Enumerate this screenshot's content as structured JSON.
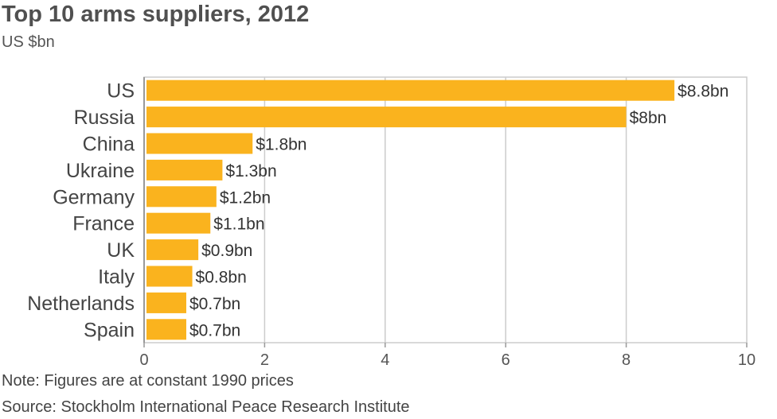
{
  "header": {
    "title": "Top 10 arms suppliers, 2012",
    "subtitle": "US $bn"
  },
  "footer": {
    "note": "Note: Figures are at constant 1990 prices",
    "source": "Source: Stockholm International Peace Research Institute"
  },
  "colors": {
    "bar": "#fab31e",
    "grid": "#cccccc",
    "axis": "#999999"
  },
  "chart_data": {
    "type": "bar",
    "orientation": "horizontal",
    "title": "Top 10 arms suppliers, 2012",
    "subtitle": "US $bn",
    "categories": [
      "US",
      "Russia",
      "China",
      "Ukraine",
      "Germany",
      "France",
      "UK",
      "Italy",
      "Netherlands",
      "Spain"
    ],
    "values": [
      8.8,
      8,
      1.8,
      1.3,
      1.2,
      1.1,
      0.9,
      0.8,
      0.7,
      0.7
    ],
    "data_labels": [
      "$8.8bn",
      "$8bn",
      "$1.8bn",
      "$1.3bn",
      "$1.2bn",
      "$1.1bn",
      "$0.9bn",
      "$0.8bn",
      "$0.7bn",
      "$0.7bn"
    ],
    "xlim": [
      0,
      10
    ],
    "xticks": [
      0,
      2,
      4,
      6,
      8,
      10
    ],
    "xtick_labels": [
      "0",
      "2",
      "4",
      "6",
      "8",
      "10"
    ],
    "grid": true,
    "legend": "none"
  }
}
